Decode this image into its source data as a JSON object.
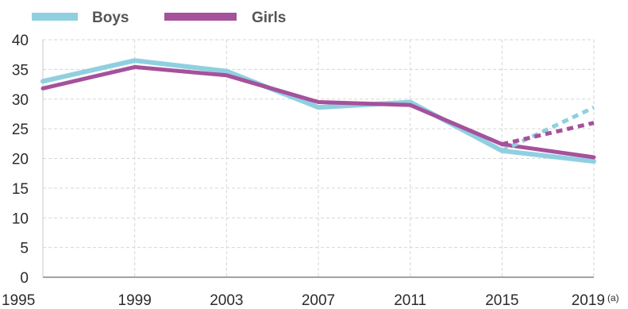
{
  "chart_data": {
    "type": "line",
    "x": [
      1995,
      1999,
      2003,
      2007,
      2011,
      2015,
      2019
    ],
    "x_labels": [
      "1995",
      "1999",
      "2003",
      "2007",
      "2011",
      "2015",
      "2019"
    ],
    "x_note": "(a)",
    "ylim": [
      0,
      40
    ],
    "yticks": [
      0,
      5,
      10,
      15,
      20,
      25,
      30,
      35,
      40
    ],
    "grid": true,
    "legend_position": "top-left",
    "series": [
      {
        "name": "Boys",
        "color": "#8fd0e0",
        "values": [
          33,
          36.5,
          34.7,
          28.6,
          29.5,
          21.3,
          19.5
        ],
        "dashed_projection": {
          "x": [
            2015,
            2019
          ],
          "values": [
            21.3,
            28.6
          ]
        }
      },
      {
        "name": "Girls",
        "color": "#a5519b",
        "values": [
          31.8,
          35.4,
          34,
          29.5,
          29,
          22.4,
          20.2
        ],
        "dashed_projection": {
          "x": [
            2015,
            2019
          ],
          "values": [
            22.4,
            26
          ]
        }
      }
    ]
  }
}
